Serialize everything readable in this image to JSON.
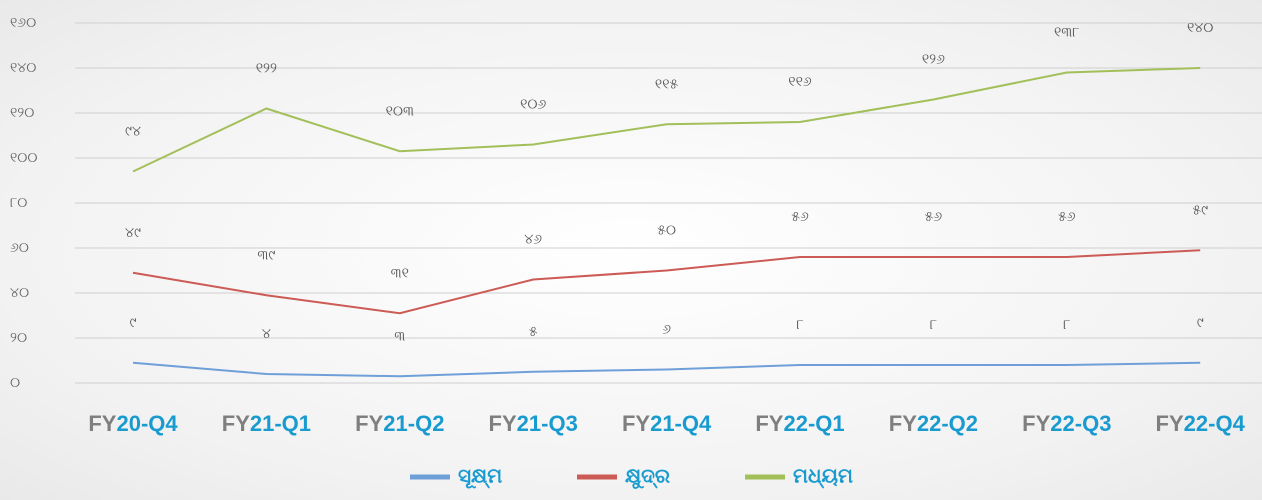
{
  "chart_data": {
    "type": "line",
    "categories": [
      "FY20-Q4",
      "FY21-Q1",
      "FY21-Q2",
      "FY21-Q3",
      "FY21-Q4",
      "FY22-Q1",
      "FY22-Q2",
      "FY22-Q3",
      "FY22-Q4"
    ],
    "series": [
      {
        "name": "ସୂକ୍ଷ୍ମ",
        "color": "#6f9fd8",
        "values": [
          9,
          4,
          3,
          5,
          6,
          8,
          8,
          8,
          9
        ],
        "value_labels": [
          "୯",
          "୪",
          "୩",
          "୫",
          "୬",
          "୮",
          "୮",
          "୮",
          "୯"
        ]
      },
      {
        "name": "କ୍ଷୁଦ୍ର",
        "color": "#cc5a55",
        "values": [
          49,
          39,
          31,
          46,
          50,
          56,
          56,
          56,
          59
        ],
        "value_labels": [
          "୪୯",
          "୩୯",
          "୩୧",
          "୪୬",
          "୫୦",
          "୫୬",
          "୫୬",
          "୫୬",
          "୫୯"
        ]
      },
      {
        "name": "ମଧ୍ୟମ",
        "color": "#a3bf5a",
        "values": [
          94,
          122,
          103,
          106,
          115,
          116,
          126,
          138,
          140
        ],
        "value_labels": [
          "୯୪",
          "୧୨୨",
          "୧୦୩",
          "୧୦୬",
          "୧୧୫",
          "୧୧୬",
          "୧୨୬",
          "୧୩୮",
          "୧୪୦"
        ]
      }
    ],
    "ylim": [
      0,
      160
    ],
    "yticks": [
      {
        "value": 0,
        "label": "୦"
      },
      {
        "value": 20,
        "label": "୨୦"
      },
      {
        "value": 40,
        "label": "୪୦"
      },
      {
        "value": 60,
        "label": "୬୦"
      },
      {
        "value": 80,
        "label": "୮୦"
      },
      {
        "value": 100,
        "label": "୧୦୦"
      },
      {
        "value": 120,
        "label": "୧୨୦"
      },
      {
        "value": 140,
        "label": "୧୪୦"
      },
      {
        "value": 160,
        "label": "୧୬୦"
      }
    ],
    "grid": true,
    "legend": "bottom"
  }
}
